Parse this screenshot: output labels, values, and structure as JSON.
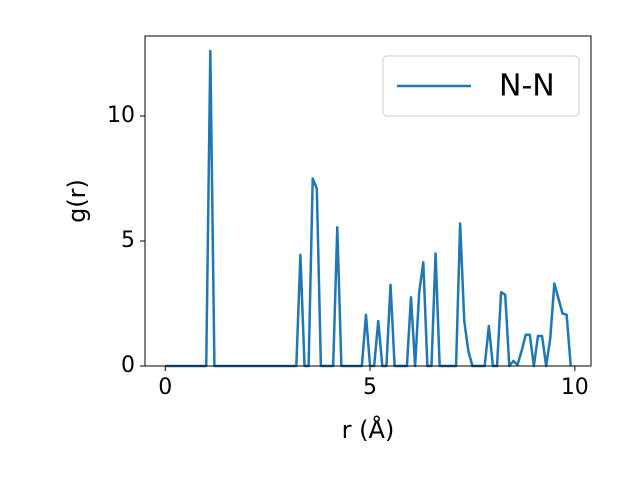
{
  "chart_data": {
    "type": "line",
    "xlabel": "r (Å)",
    "ylabel": "g(r)",
    "x": [
      0,
      0.1,
      0.2,
      0.3,
      0.4,
      0.5,
      0.6,
      0.7,
      0.8,
      0.9,
      1,
      1.1,
      1.2,
      1.3,
      1.4,
      1.5,
      1.6,
      1.7,
      1.8,
      1.9,
      2,
      2.1,
      2.2,
      2.3,
      2.4,
      2.5,
      2.6,
      2.7,
      2.8,
      2.9,
      3,
      3.1,
      3.2,
      3.3,
      3.4,
      3.5,
      3.6,
      3.7,
      3.8,
      3.9,
      4,
      4.1,
      4.2,
      4.3,
      4.4,
      4.5,
      4.6,
      4.7,
      4.8,
      4.9,
      5,
      5.1,
      5.2,
      5.3,
      5.4,
      5.5,
      5.6,
      5.7,
      5.8,
      5.9,
      6,
      6.1,
      6.2,
      6.3,
      6.4,
      6.5,
      6.6,
      6.7,
      6.8,
      6.9,
      7,
      7.1,
      7.2,
      7.3,
      7.4,
      7.5,
      7.6,
      7.7,
      7.8,
      7.9,
      8,
      8.1,
      8.2,
      8.3,
      8.4,
      8.5,
      8.6,
      8.7,
      8.8,
      8.9,
      9,
      9.1,
      9.2,
      9.3,
      9.4,
      9.5,
      9.6,
      9.7,
      9.8,
      9.9
    ],
    "series": [
      {
        "name": "N-N",
        "color": "#1f77b4",
        "values": [
          0,
          0,
          0,
          0,
          0,
          0,
          0,
          0,
          0,
          0,
          0,
          12.6,
          0,
          0,
          0,
          0,
          0,
          0,
          0,
          0,
          0,
          0,
          0,
          0,
          0,
          0,
          0,
          0,
          0,
          0,
          0,
          0,
          0,
          4.45,
          0,
          0,
          7.5,
          7.1,
          0,
          0,
          0,
          0,
          5.55,
          0,
          0,
          0,
          0,
          0,
          0,
          2.05,
          0,
          0,
          1.8,
          0,
          0,
          3.25,
          0,
          0,
          0,
          0,
          2.75,
          0,
          2.95,
          4.15,
          0,
          0,
          4.5,
          0,
          0,
          0,
          0,
          0,
          5.7,
          1.8,
          0.6,
          0,
          0,
          0,
          0,
          1.6,
          0,
          0,
          2.95,
          2.85,
          0,
          0.2,
          0.05,
          0.6,
          1.25,
          1.25,
          0,
          1.2,
          1.2,
          0,
          1.1,
          3.3,
          2.7,
          2.1,
          2.05,
          0
        ]
      }
    ],
    "xlim": [
      -0.495,
      10.395
    ],
    "ylim": [
      0,
      13.2
    ],
    "xticks": [
      0,
      5,
      10
    ],
    "yticks": [
      0,
      5,
      10
    ],
    "legend": "upper right"
  }
}
